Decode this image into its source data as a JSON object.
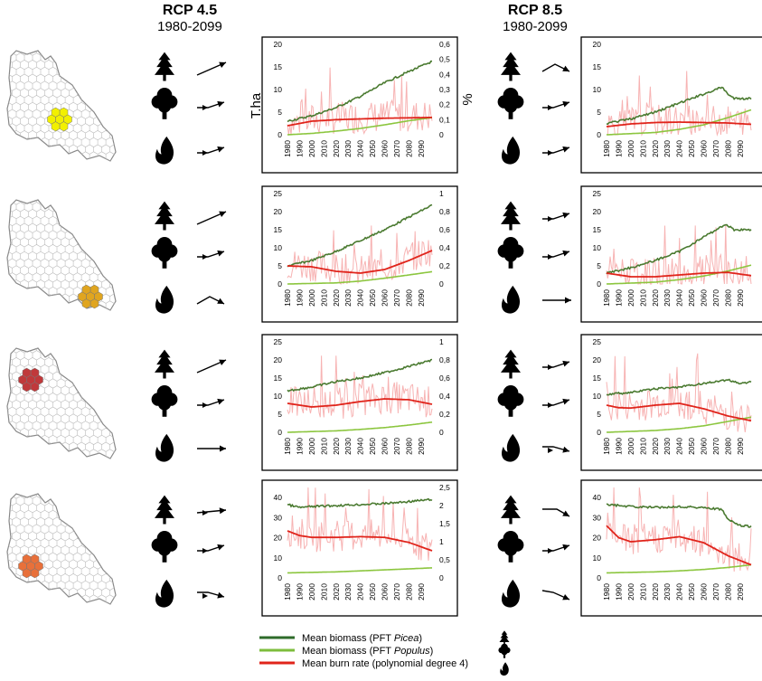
{
  "figure": {
    "scenarios": [
      {
        "name": "RCP 4.5",
        "years": "1980-2099"
      },
      {
        "name": "RCP 8.5",
        "years": "1980-2099"
      }
    ],
    "left_axis_label": "T.ha",
    "right_axis_label": "%",
    "legend": [
      {
        "label_pre": "Mean biomass (PFT ",
        "label_em": "Picea",
        "label_post": ")",
        "color": "#2e6b2a",
        "icon": "conifer-tree-icon"
      },
      {
        "label_pre": "Mean biomass (PFT ",
        "label_em": "Populus",
        "label_post": ")",
        "color": "#7dbd3c",
        "icon": "deciduous-tree-icon"
      },
      {
        "label_pre": "Mean burn rate (polynomial degree 4)",
        "label_em": "",
        "label_post": "",
        "color": "#e0241b",
        "icon": "fire-icon"
      }
    ],
    "colors": {
      "picea": "#4a7a30",
      "populus": "#8cc63f",
      "burn_fit": "#e0241b",
      "burn_raw": "#f7b3b3",
      "region_row1": "#f2f000",
      "region_row2": "#e0a51f",
      "region_row3": "#c0393b",
      "region_row4": "#e8703a"
    },
    "rows": [
      {
        "trends_45": [
          "up",
          "up-slight",
          "up-slight"
        ],
        "trends_85": [
          "up-then-down",
          "up-slight",
          "up-slight"
        ]
      },
      {
        "trends_45": [
          "up",
          "up-slight",
          "up-then-down"
        ],
        "trends_85": [
          "up-slight",
          "up-slight",
          "flat"
        ]
      },
      {
        "trends_45": [
          "up",
          "up-slight",
          "flat"
        ],
        "trends_85": [
          "up-slight",
          "up-slight",
          "down-slight"
        ]
      },
      {
        "trends_45": [
          "up-slight-flat",
          "up-slight",
          "down-slight"
        ],
        "trends_85": [
          "flat-then-down",
          "up-slight",
          "down"
        ]
      }
    ]
  },
  "chart_data": [
    {
      "type": "line",
      "scenario": "RCP 4.5",
      "row": 1,
      "x_ticks": [
        1980,
        1990,
        2000,
        2010,
        2020,
        2030,
        2040,
        2050,
        2060,
        2070,
        2080,
        2090
      ],
      "y_left_ticks": [
        "0",
        "5",
        "10",
        "15",
        "20"
      ],
      "y_right_ticks": [
        "0",
        "0,1",
        "0,2",
        "0,3",
        "0,4",
        "0,5",
        "0,6"
      ],
      "ylim": [
        0,
        20
      ],
      "y2lim": [
        0,
        0.6
      ],
      "series": [
        {
          "key": "picea",
          "points": [
            [
              1980,
              3
            ],
            [
              2000,
              4.2
            ],
            [
              2020,
              6
            ],
            [
              2040,
              8.5
            ],
            [
              2060,
              11.5
            ],
            [
              2080,
              14
            ],
            [
              2099,
              16.2
            ]
          ]
        },
        {
          "key": "populus",
          "points": [
            [
              1980,
              0
            ],
            [
              2000,
              0.3
            ],
            [
              2020,
              0.8
            ],
            [
              2040,
              1.4
            ],
            [
              2060,
              2.2
            ],
            [
              2080,
              3.1
            ],
            [
              2099,
              3.8
            ]
          ]
        },
        {
          "key": "burn_fit",
          "y_axis": "right",
          "points": [
            [
              1980,
              0.06
            ],
            [
              2000,
              0.09
            ],
            [
              2020,
              0.1
            ],
            [
              2040,
              0.105
            ],
            [
              2060,
              0.11
            ],
            [
              2080,
              0.112
            ],
            [
              2099,
              0.115
            ]
          ]
        }
      ]
    },
    {
      "type": "line",
      "scenario": "RCP 4.5",
      "row": 2,
      "x_ticks": [
        1980,
        1990,
        2000,
        2010,
        2020,
        2030,
        2040,
        2050,
        2060,
        2070,
        2080,
        2090
      ],
      "y_left_ticks": [
        "0",
        "5",
        "10",
        "15",
        "20",
        "25"
      ],
      "y_right_ticks": [
        "0",
        "0,2",
        "0,4",
        "0,6",
        "0,8",
        "1"
      ],
      "ylim": [
        0,
        25
      ],
      "y2lim": [
        0,
        1
      ],
      "series": [
        {
          "key": "picea",
          "points": [
            [
              1980,
              5
            ],
            [
              2000,
              6.5
            ],
            [
              2020,
              9
            ],
            [
              2040,
              12
            ],
            [
              2060,
              15
            ],
            [
              2080,
              18.5
            ],
            [
              2099,
              21.8
            ]
          ]
        },
        {
          "key": "populus",
          "points": [
            [
              1980,
              0
            ],
            [
              2020,
              0.3
            ],
            [
              2040,
              0.8
            ],
            [
              2060,
              1.6
            ],
            [
              2080,
              2.5
            ],
            [
              2099,
              3.4
            ]
          ]
        },
        {
          "key": "burn_fit",
          "y_axis": "right",
          "points": [
            [
              1980,
              0.2
            ],
            [
              2000,
              0.19
            ],
            [
              2020,
              0.14
            ],
            [
              2040,
              0.12
            ],
            [
              2060,
              0.16
            ],
            [
              2080,
              0.26
            ],
            [
              2099,
              0.37
            ]
          ]
        }
      ]
    },
    {
      "type": "line",
      "scenario": "RCP 4.5",
      "row": 3,
      "x_ticks": [
        1980,
        1990,
        2000,
        2010,
        2020,
        2030,
        2040,
        2050,
        2060,
        2070,
        2080,
        2090
      ],
      "y_left_ticks": [
        "0",
        "5",
        "10",
        "15",
        "20",
        "25"
      ],
      "y_right_ticks": [
        "0",
        "0,2",
        "0,4",
        "0,6",
        "0,8",
        "1"
      ],
      "ylim": [
        0,
        25
      ],
      "y2lim": [
        0,
        1
      ],
      "series": [
        {
          "key": "picea",
          "points": [
            [
              1980,
              11.5
            ],
            [
              2000,
              12.5
            ],
            [
              2020,
              14
            ],
            [
              2040,
              15
            ],
            [
              2060,
              16.5
            ],
            [
              2080,
              18.2
            ],
            [
              2099,
              20
            ]
          ]
        },
        {
          "key": "populus",
          "points": [
            [
              1980,
              0
            ],
            [
              2020,
              0.4
            ],
            [
              2040,
              0.8
            ],
            [
              2060,
              1.3
            ],
            [
              2080,
              2
            ],
            [
              2099,
              2.8
            ]
          ]
        },
        {
          "key": "burn_fit",
          "y_axis": "right",
          "points": [
            [
              1980,
              0.32
            ],
            [
              2000,
              0.28
            ],
            [
              2020,
              0.3
            ],
            [
              2040,
              0.34
            ],
            [
              2060,
              0.37
            ],
            [
              2080,
              0.36
            ],
            [
              2099,
              0.31
            ]
          ]
        }
      ]
    },
    {
      "type": "line",
      "scenario": "RCP 4.5",
      "row": 4,
      "x_ticks": [
        1980,
        1990,
        2000,
        2010,
        2020,
        2030,
        2040,
        2050,
        2060,
        2070,
        2080,
        2090
      ],
      "y_left_ticks": [
        "0",
        "10",
        "20",
        "30",
        "40"
      ],
      "y_right_ticks": [
        "0",
        "0,5",
        "1",
        "1,5",
        "2",
        "2,5"
      ],
      "ylim": [
        0,
        45
      ],
      "y2lim": [
        0,
        2.5
      ],
      "series": [
        {
          "key": "picea",
          "points": [
            [
              1980,
              36.5
            ],
            [
              1990,
              35
            ],
            [
              2000,
              35.5
            ],
            [
              2020,
              36
            ],
            [
              2040,
              36.5
            ],
            [
              2060,
              37
            ],
            [
              2080,
              38
            ],
            [
              2099,
              39
            ]
          ]
        },
        {
          "key": "populus",
          "points": [
            [
              1980,
              2.5
            ],
            [
              2020,
              3
            ],
            [
              2040,
              3.5
            ],
            [
              2060,
              4
            ],
            [
              2080,
              4.5
            ],
            [
              2099,
              5
            ]
          ]
        },
        {
          "key": "burn_fit",
          "y_axis": "right",
          "points": [
            [
              1980,
              1.3
            ],
            [
              1990,
              1.17
            ],
            [
              2000,
              1.12
            ],
            [
              2020,
              1.12
            ],
            [
              2040,
              1.14
            ],
            [
              2060,
              1.12
            ],
            [
              2080,
              0.98
            ],
            [
              2099,
              0.75
            ]
          ]
        }
      ]
    },
    {
      "type": "line",
      "scenario": "RCP 8.5",
      "row": 1,
      "x_ticks": [
        1980,
        1990,
        2000,
        2010,
        2020,
        2030,
        2040,
        2050,
        2060,
        2070,
        2080,
        2090
      ],
      "y_left_ticks": [
        "0",
        "5",
        "10",
        "15",
        "20"
      ],
      "ylim": [
        0,
        20
      ],
      "series": [
        {
          "key": "picea",
          "points": [
            [
              1980,
              2.5
            ],
            [
              2000,
              3.5
            ],
            [
              2020,
              5
            ],
            [
              2040,
              7
            ],
            [
              2060,
              9
            ],
            [
              2075,
              10.5
            ],
            [
              2080,
              9
            ],
            [
              2085,
              8
            ],
            [
              2099,
              8
            ]
          ]
        },
        {
          "key": "populus",
          "points": [
            [
              1980,
              0
            ],
            [
              2020,
              0.5
            ],
            [
              2040,
              1.2
            ],
            [
              2060,
              2.2
            ],
            [
              2080,
              3.8
            ],
            [
              2099,
              5.5
            ]
          ]
        },
        {
          "key": "burn_fit",
          "points": [
            [
              1980,
              1.8
            ],
            [
              2000,
              2.4
            ],
            [
              2020,
              2.7
            ],
            [
              2040,
              2.8
            ],
            [
              2060,
              2.7
            ],
            [
              2080,
              2.6
            ],
            [
              2099,
              2.3
            ]
          ]
        }
      ]
    },
    {
      "type": "line",
      "scenario": "RCP 8.5",
      "row": 2,
      "x_ticks": [
        1980,
        1990,
        2000,
        2010,
        2020,
        2030,
        2040,
        2050,
        2060,
        2070,
        2080,
        2090
      ],
      "y_left_ticks": [
        "0",
        "5",
        "10",
        "15",
        "20",
        "25"
      ],
      "ylim": [
        0,
        25
      ],
      "series": [
        {
          "key": "picea",
          "points": [
            [
              1980,
              3
            ],
            [
              2000,
              4.5
            ],
            [
              2020,
              6.5
            ],
            [
              2040,
              9
            ],
            [
              2060,
              13
            ],
            [
              2078,
              16.5
            ],
            [
              2085,
              15
            ],
            [
              2099,
              15
            ]
          ]
        },
        {
          "key": "populus",
          "points": [
            [
              1980,
              0
            ],
            [
              2020,
              0.5
            ],
            [
              2040,
              1.2
            ],
            [
              2060,
              2.2
            ],
            [
              2080,
              3.6
            ],
            [
              2099,
              5.2
            ]
          ]
        },
        {
          "key": "burn_fit",
          "points": [
            [
              1980,
              3
            ],
            [
              2000,
              2
            ],
            [
              2020,
              2
            ],
            [
              2040,
              2.5
            ],
            [
              2060,
              3
            ],
            [
              2080,
              3.2
            ],
            [
              2099,
              2.3
            ]
          ]
        }
      ]
    },
    {
      "type": "line",
      "scenario": "RCP 8.5",
      "row": 3,
      "x_ticks": [
        1980,
        1990,
        2000,
        2010,
        2020,
        2030,
        2040,
        2050,
        2060,
        2070,
        2080,
        2090
      ],
      "y_left_ticks": [
        "0",
        "5",
        "10",
        "15",
        "20",
        "25"
      ],
      "ylim": [
        0,
        25
      ],
      "series": [
        {
          "key": "picea",
          "points": [
            [
              1980,
              10.5
            ],
            [
              2000,
              11
            ],
            [
              2020,
              12
            ],
            [
              2040,
              12.5
            ],
            [
              2060,
              13.5
            ],
            [
              2080,
              14.5
            ],
            [
              2090,
              13.5
            ],
            [
              2099,
              14
            ]
          ]
        },
        {
          "key": "populus",
          "points": [
            [
              1980,
              0
            ],
            [
              2020,
              0.5
            ],
            [
              2040,
              1
            ],
            [
              2060,
              1.8
            ],
            [
              2080,
              3
            ],
            [
              2099,
              4.2
            ]
          ]
        },
        {
          "key": "burn_fit",
          "points": [
            [
              1980,
              7.5
            ],
            [
              1990,
              6.8
            ],
            [
              2000,
              6.7
            ],
            [
              2020,
              7.5
            ],
            [
              2040,
              8
            ],
            [
              2060,
              6.5
            ],
            [
              2080,
              4.5
            ],
            [
              2099,
              3.2
            ]
          ]
        }
      ]
    },
    {
      "type": "line",
      "scenario": "RCP 8.5",
      "row": 4,
      "x_ticks": [
        1980,
        1990,
        2000,
        2010,
        2020,
        2030,
        2040,
        2050,
        2060,
        2070,
        2080,
        2090
      ],
      "y_left_ticks": [
        "0",
        "10",
        "20",
        "30",
        "40"
      ],
      "ylim": [
        0,
        45
      ],
      "series": [
        {
          "key": "picea",
          "points": [
            [
              1980,
              36.5
            ],
            [
              2000,
              35.5
            ],
            [
              2020,
              35
            ],
            [
              2040,
              35.5
            ],
            [
              2060,
              35
            ],
            [
              2075,
              34
            ],
            [
              2080,
              29
            ],
            [
              2090,
              26
            ],
            [
              2099,
              25.5
            ]
          ]
        },
        {
          "key": "populus",
          "points": [
            [
              1980,
              2.5
            ],
            [
              2020,
              3
            ],
            [
              2040,
              3.5
            ],
            [
              2060,
              4.2
            ],
            [
              2080,
              5.2
            ],
            [
              2099,
              6.5
            ]
          ]
        },
        {
          "key": "burn_fit",
          "points": [
            [
              1980,
              26
            ],
            [
              1990,
              20
            ],
            [
              2000,
              18
            ],
            [
              2020,
              19
            ],
            [
              2040,
              20.5
            ],
            [
              2060,
              17.5
            ],
            [
              2080,
              11
            ],
            [
              2099,
              6.5
            ]
          ]
        }
      ]
    }
  ]
}
